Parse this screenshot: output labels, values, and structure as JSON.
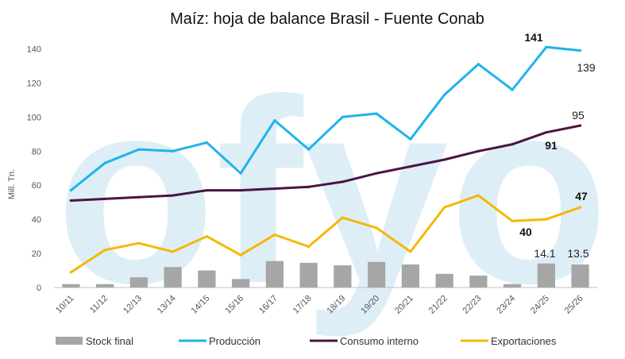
{
  "chart_data": {
    "type": "line",
    "title": "Maíz: hoja de balance Brasil  - Fuente Conab",
    "ylabel": "Mill. Tn.",
    "ylim": [
      0,
      150
    ],
    "yticks": [
      0,
      20,
      40,
      60,
      80,
      100,
      120,
      140
    ],
    "categories": [
      "10/11",
      "11/12",
      "12/13",
      "13/14",
      "14/15",
      "15/16",
      "16/17",
      "17/18",
      "18/19",
      "19/20",
      "20/21",
      "21/22",
      "22/23",
      "23/24",
      "24/25",
      "25/26"
    ],
    "series": [
      {
        "name": "Stock final",
        "kind": "bar",
        "color": "#a6a6a6",
        "values": [
          2,
          2,
          6,
          12,
          10,
          5,
          15.5,
          14.5,
          13,
          15,
          13.5,
          8,
          7,
          2,
          14.1,
          13.5
        ]
      },
      {
        "name": "Producción",
        "kind": "line",
        "color": "#1eb4ea",
        "values": [
          57,
          73,
          81,
          80,
          85,
          67,
          98,
          81,
          100,
          102,
          87,
          113,
          131,
          116,
          141,
          139
        ]
      },
      {
        "name": "Consumo interno",
        "kind": "line",
        "color": "#4a1444",
        "values": [
          51,
          52,
          53,
          54,
          57,
          57,
          58,
          59,
          62,
          67,
          71,
          75,
          80,
          84,
          91,
          95
        ]
      },
      {
        "name": "Exportaciones",
        "kind": "line",
        "color": "#f5b800",
        "values": [
          9,
          22,
          26,
          21,
          30,
          19,
          31,
          24,
          41,
          35,
          21,
          47,
          54,
          39,
          40,
          47
        ]
      }
    ],
    "annotations": [
      "141",
      "139",
      "95",
      "91",
      "47",
      "40",
      "14.1",
      "13.5"
    ],
    "watermark": "ofyo",
    "legend_position": "bottom",
    "grid": false
  }
}
